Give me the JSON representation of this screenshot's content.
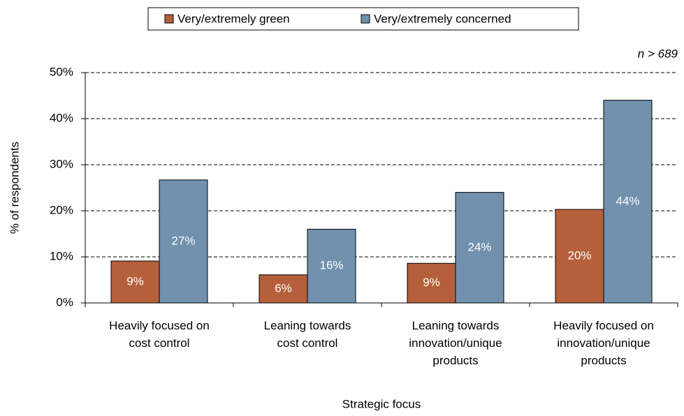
{
  "chart_data": {
    "type": "bar",
    "note": "n > 689",
    "xlabel": "Strategic focus",
    "ylabel": "% of respondents",
    "categories": [
      "Heavily focused on\ncost control",
      "Leaning towards\ncost control",
      "Leaning towards\ninnovation/unique\nproducts",
      "Heavily focused on\ninnovation/unique\nproducts"
    ],
    "series": [
      {
        "name": "Very/extremely green",
        "color": "#b5603a",
        "values": [
          9.1,
          6.1,
          8.6,
          20.3
        ],
        "value_labels": [
          "9%",
          "6%",
          "9%",
          "20%"
        ]
      },
      {
        "name": "Very/extremely concerned",
        "color": "#7191ae",
        "values": [
          26.7,
          16,
          24,
          44
        ],
        "value_labels": [
          "27%",
          "16%",
          "24%",
          "44%"
        ]
      }
    ],
    "ylim": [
      0,
      50
    ],
    "yticks": [
      {
        "value": 0,
        "label": "0%"
      },
      {
        "value": 10,
        "label": "10%"
      },
      {
        "value": 20,
        "label": "20%"
      },
      {
        "value": 30,
        "label": "30%"
      },
      {
        "value": 40,
        "label": "40%"
      },
      {
        "value": 50,
        "label": "50%"
      }
    ],
    "grid": true,
    "legend": "top"
  }
}
